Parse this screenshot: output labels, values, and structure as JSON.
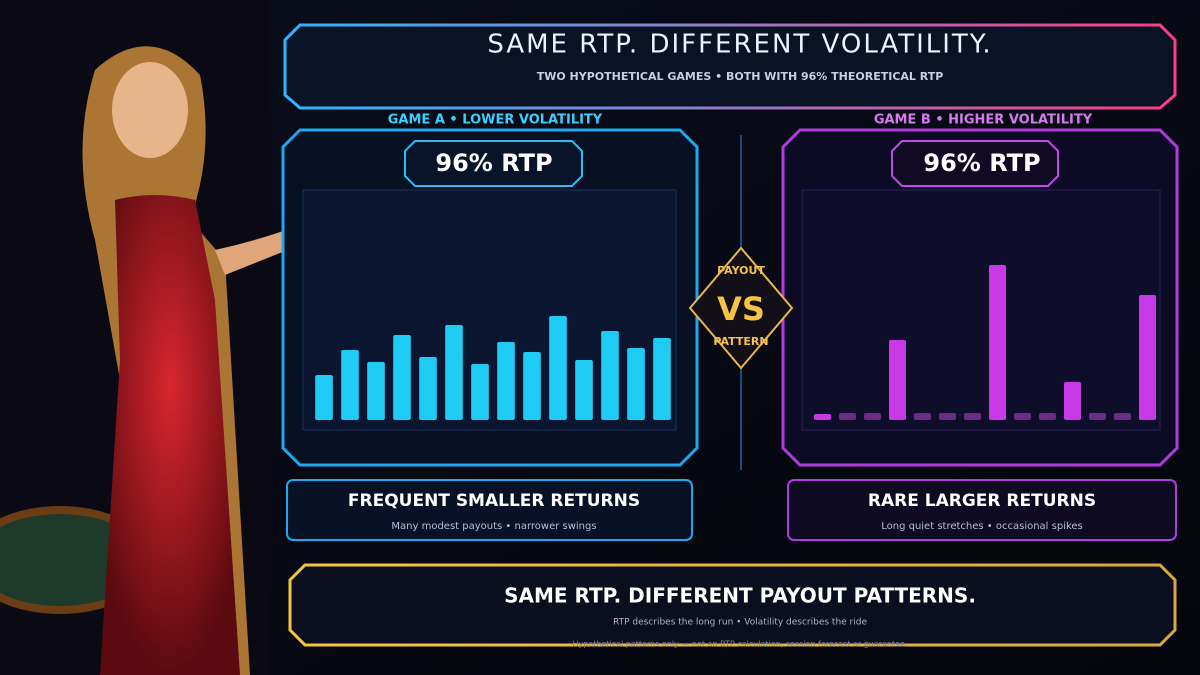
{
  "header": {
    "title": "SAME RTP. DIFFERENT VOLATILITY.",
    "subtitle": "TWO HYPOTHETICAL GAMES • BOTH WITH 96% THEORETICAL RTP"
  },
  "versus": {
    "top": "PAYOUT",
    "middle": "VS",
    "bottom": "PATTERN"
  },
  "chart_data": [
    {
      "type": "bar",
      "title": "GAME A • LOWER VOLATILITY",
      "badge": "96% RTP",
      "caption": "FREQUENT SMALLER RETURNS",
      "note": "Many modest payouts • narrower swings",
      "values": [
        45,
        70,
        58,
        85,
        63,
        95,
        56,
        78,
        68,
        104,
        60,
        89,
        72,
        82
      ],
      "color": "#1ecbf5",
      "ylim": [
        0,
        225
      ]
    },
    {
      "type": "bar",
      "title": "GAME B • HIGHER VOLATILITY",
      "badge": "96% RTP",
      "caption": "RARE LARGER RETURNS",
      "note": "Long quiet stretches • occasional spikes",
      "values": [
        6,
        7,
        7,
        80,
        7,
        7,
        7,
        155,
        7,
        7,
        38,
        7,
        7,
        125
      ],
      "colors": [
        "#c83ae8",
        "#6b2c84",
        "#6b2c84",
        "#c83ae8",
        "#6b2c84",
        "#6b2c84",
        "#6b2c84",
        "#c83ae8",
        "#6b2c84",
        "#6b2c84",
        "#c83ae8",
        "#6b2c84",
        "#6b2c84",
        "#c83ae8"
      ],
      "ylim": [
        0,
        225
      ]
    }
  ],
  "footer": {
    "title": "SAME RTP. DIFFERENT PAYOUT PATTERNS.",
    "subtitle": "RTP describes the long run  •  Volatility describes the ride",
    "disclaimer": "Hypothetical patterns only — not an RTP calculation, session forecast or guarantee."
  }
}
